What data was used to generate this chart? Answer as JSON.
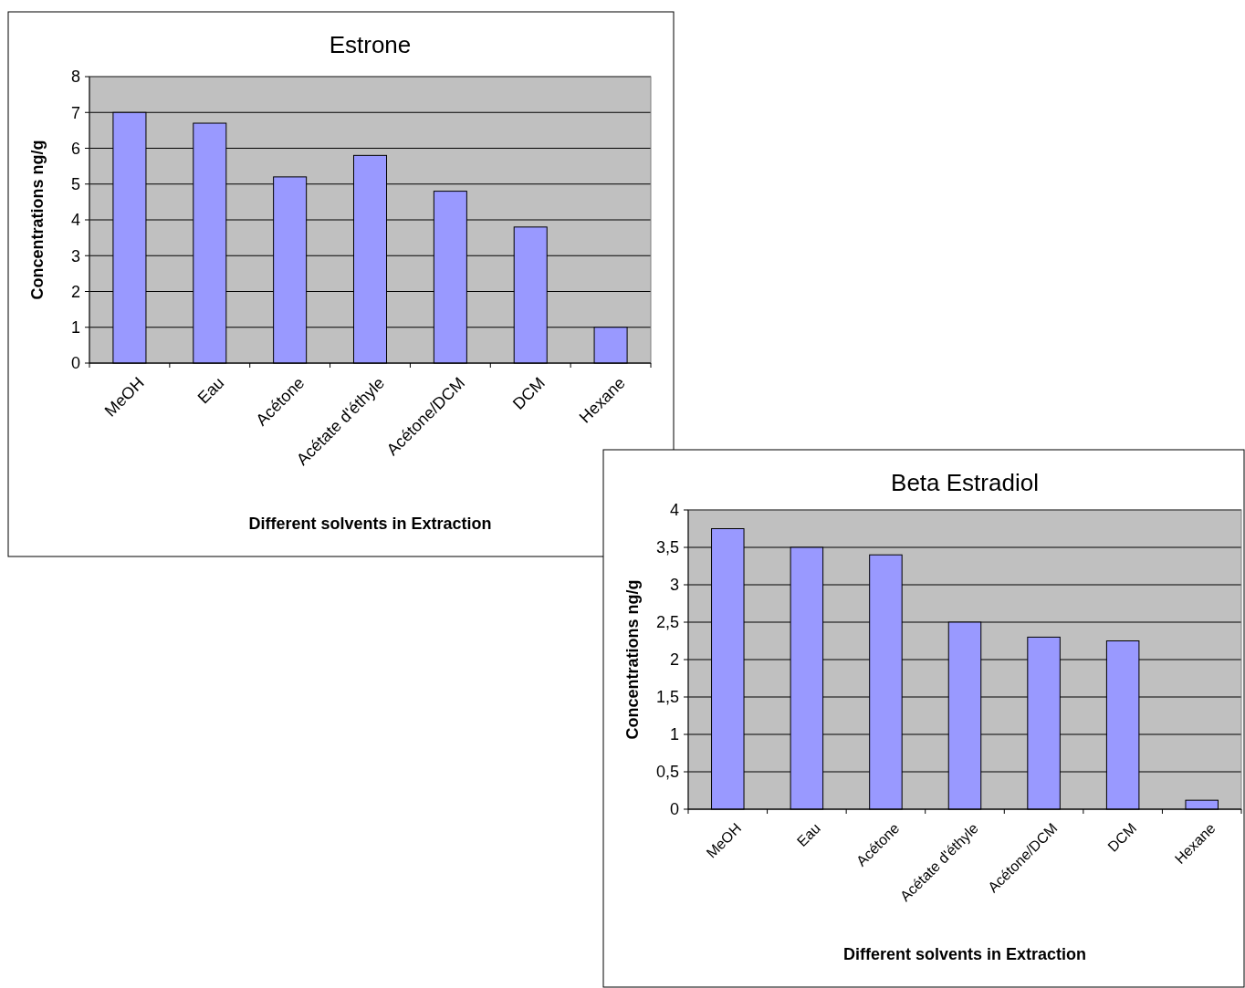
{
  "chart_data": [
    {
      "type": "bar",
      "title": "Estrone",
      "xlabel": "Different solvents in Extraction",
      "ylabel": "Concentrations  ng/g",
      "categories": [
        "MeOH",
        "Eau",
        "Acétone",
        "Acétate d'éthyle",
        "Acétone/DCM",
        "DCM",
        "Hexane"
      ],
      "values": [
        7,
        6.7,
        5.2,
        5.8,
        4.8,
        3.8,
        1
      ],
      "color": "#9999ff",
      "ylim": [
        0,
        8
      ],
      "yticks": [
        0,
        1,
        2,
        3,
        4,
        5,
        6,
        7,
        8
      ],
      "grid": "y"
    },
    {
      "type": "bar",
      "title": "Beta Estradiol",
      "xlabel": "Different solvents in Extraction",
      "ylabel": "Concentrations  ng/g",
      "categories": [
        "MeOH",
        "Eau",
        "Acétone",
        "Acétate d'éthyle",
        "Acétone/DCM",
        "DCM",
        "Hexane"
      ],
      "values": [
        3.75,
        3.5,
        3.4,
        2.5,
        2.3,
        2.25,
        0.12
      ],
      "color": "#9999ff",
      "ylim": [
        0,
        4
      ],
      "yticks": [
        0,
        {
          "value": 0.5,
          "label": "0,5"
        },
        1,
        {
          "value": 1.5,
          "label": "1,5"
        },
        2,
        {
          "value": 2.5,
          "label": "2,5"
        },
        3,
        {
          "value": 3.5,
          "label": "3,5"
        },
        4
      ],
      "grid": "y"
    }
  ]
}
